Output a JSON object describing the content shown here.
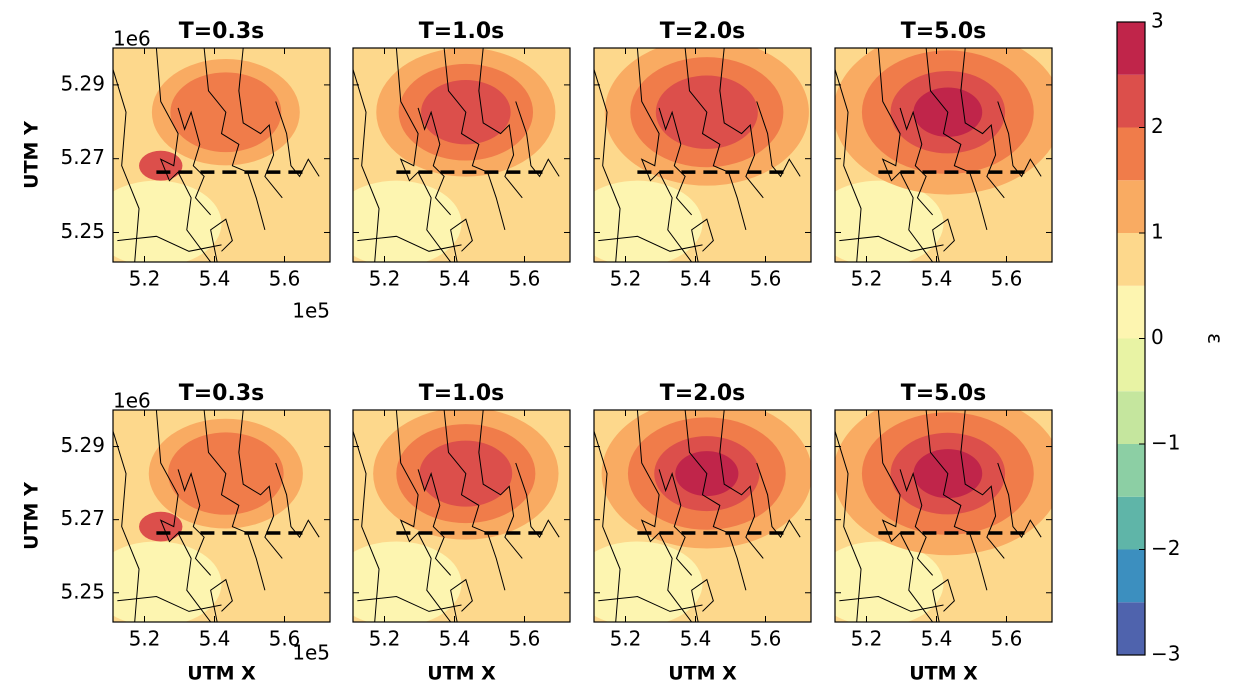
{
  "chart_data": [
    {
      "type": "contour",
      "title": "T=0.3s",
      "ylabel": "UTM Y",
      "y_offset": "1e6",
      "x_offset": "1e5",
      "xlim": [
        5.11,
        5.73
      ],
      "ylim": [
        5.242,
        5.3
      ],
      "xticks": [
        5.2,
        5.4,
        5.6
      ],
      "yticks": [
        5.25,
        5.27,
        5.29
      ],
      "show_yticklabels": true
    },
    {
      "type": "contour",
      "title": "T=1.0s",
      "xlim": [
        5.11,
        5.73
      ],
      "ylim": [
        5.242,
        5.3
      ],
      "xticks": [
        5.2,
        5.4,
        5.6
      ],
      "yticks": [
        5.25,
        5.27,
        5.29
      ],
      "show_yticklabels": false
    },
    {
      "type": "contour",
      "title": "T=2.0s",
      "xlim": [
        5.11,
        5.73
      ],
      "ylim": [
        5.242,
        5.3
      ],
      "xticks": [
        5.2,
        5.4,
        5.6
      ],
      "yticks": [
        5.25,
        5.27,
        5.29
      ],
      "show_yticklabels": false
    },
    {
      "type": "contour",
      "title": "T=5.0s",
      "xlim": [
        5.11,
        5.73
      ],
      "ylim": [
        5.242,
        5.3
      ],
      "xticks": [
        5.2,
        5.4,
        5.6
      ],
      "yticks": [
        5.25,
        5.27,
        5.29
      ],
      "show_yticklabels": false
    },
    {
      "type": "contour",
      "title": "T=0.3s",
      "ylabel": "UTM Y",
      "xlabel": "UTM X",
      "y_offset": "1e6",
      "x_offset": "1e5",
      "xlim": [
        5.11,
        5.73
      ],
      "ylim": [
        5.242,
        5.3
      ],
      "xticks": [
        5.2,
        5.4,
        5.6
      ],
      "yticks": [
        5.25,
        5.27,
        5.29
      ],
      "show_yticklabels": true
    },
    {
      "type": "contour",
      "title": "T=1.0s",
      "xlabel": "UTM X",
      "xlim": [
        5.11,
        5.73
      ],
      "ylim": [
        5.242,
        5.3
      ],
      "xticks": [
        5.2,
        5.4,
        5.6
      ],
      "yticks": [
        5.25,
        5.27,
        5.29
      ],
      "show_yticklabels": false
    },
    {
      "type": "contour",
      "title": "T=2.0s",
      "xlabel": "UTM X",
      "xlim": [
        5.11,
        5.73
      ],
      "ylim": [
        5.242,
        5.3
      ],
      "xticks": [
        5.2,
        5.4,
        5.6
      ],
      "yticks": [
        5.25,
        5.27,
        5.29
      ],
      "show_yticklabels": false
    },
    {
      "type": "contour",
      "title": "T=5.0s",
      "xlabel": "UTM X",
      "xlim": [
        5.11,
        5.73
      ],
      "ylim": [
        5.242,
        5.3
      ],
      "xticks": [
        5.2,
        5.4,
        5.6
      ],
      "yticks": [
        5.25,
        5.27,
        5.29
      ],
      "show_yticklabels": false
    },
    {
      "type": "colorbar",
      "label": "ε",
      "ylim": [
        -3,
        3
      ],
      "yticks": [
        {
          "value": -3,
          "label": "−3"
        },
        {
          "value": -2,
          "label": "−2"
        },
        {
          "value": -1,
          "label": "−1"
        },
        0,
        1,
        2,
        3
      ],
      "levels": [
        -3,
        -2.5,
        -2,
        -1.5,
        -1,
        -0.5,
        0,
        0.5,
        1,
        1.5,
        2,
        2.5,
        3
      ],
      "colors": [
        "#4f63ad",
        "#3c8fbf",
        "#5fb5a8",
        "#8ccfa4",
        "#c5e69e",
        "#e8f3a4",
        "#fdf5b0",
        "#fdd88c",
        "#f9ab62",
        "#f07c4a",
        "#dc4f4b",
        "#c0254a"
      ]
    }
  ]
}
